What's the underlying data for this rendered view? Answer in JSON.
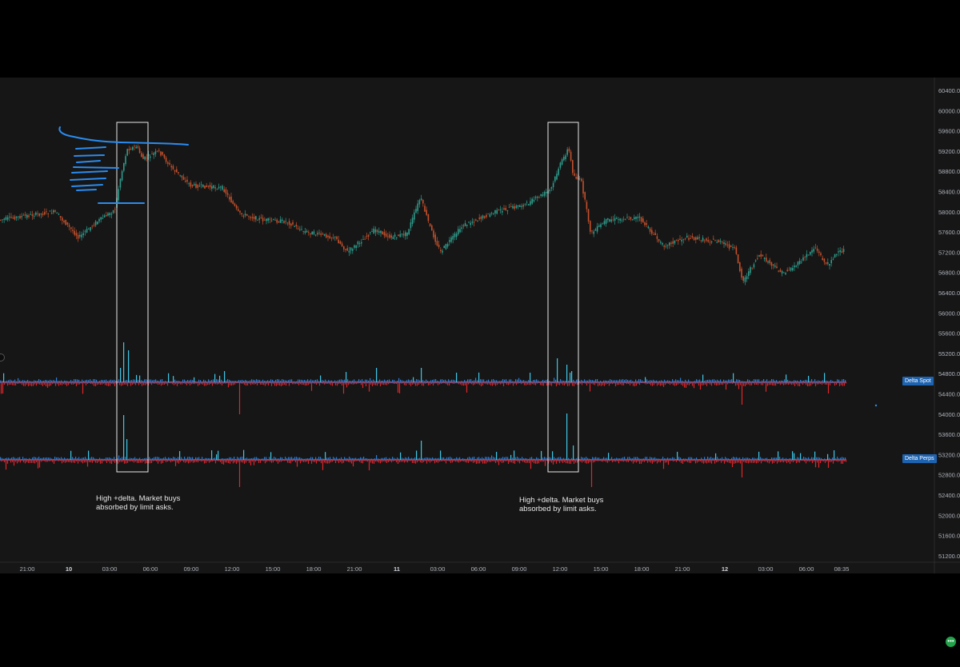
{
  "price_axis": {
    "labels": [
      "60400.0",
      "60000.0",
      "59600.0",
      "59200.0",
      "58800.0",
      "58400.0",
      "58000.0",
      "57600.0",
      "57200.0",
      "56800.0",
      "56400.0",
      "56000.0",
      "55600.0",
      "55200.0",
      "54800.0",
      "54400.0",
      "54000.0",
      "53600.0",
      "53200.0",
      "52800.0",
      "52400.0",
      "52000.0",
      "51600.0",
      "51200.0"
    ]
  },
  "time_axis": {
    "labels": [
      {
        "text": "21:00",
        "bold": false
      },
      {
        "text": "10",
        "bold": true
      },
      {
        "text": "03:00",
        "bold": false
      },
      {
        "text": "06:00",
        "bold": false
      },
      {
        "text": "09:00",
        "bold": false
      },
      {
        "text": "12:00",
        "bold": false
      },
      {
        "text": "15:00",
        "bold": false
      },
      {
        "text": "18:00",
        "bold": false
      },
      {
        "text": "21:00",
        "bold": false
      },
      {
        "text": "11",
        "bold": true
      },
      {
        "text": "03:00",
        "bold": false
      },
      {
        "text": "06:00",
        "bold": false
      },
      {
        "text": "09:00",
        "bold": false
      },
      {
        "text": "12:00",
        "bold": false
      },
      {
        "text": "15:00",
        "bold": false
      },
      {
        "text": "18:00",
        "bold": false
      },
      {
        "text": "21:00",
        "bold": false
      },
      {
        "text": "12",
        "bold": true
      },
      {
        "text": "03:00",
        "bold": false
      },
      {
        "text": "06:00",
        "bold": false
      },
      {
        "text": "08:35",
        "bold": false
      }
    ]
  },
  "indicators": {
    "delta_spot_label": "Delta Spot",
    "delta_perps_label": "Delta Perps"
  },
  "annotations": {
    "left_note": "High +delta. Market buys absorbed by limit asks.",
    "right_note": "High +delta. Market buys absorbed by limit asks."
  },
  "colors": {
    "background": "#161616",
    "up_candle": "#2e9c8c",
    "down_candle": "#c4502c",
    "delta_positive": "#3fc6e8",
    "delta_negative": "#e0262b",
    "drawing_blue": "#2a8cf0",
    "label_badge": "#1e63b0"
  },
  "menu_button": {
    "icon": "more-icon",
    "label": "•••"
  }
}
